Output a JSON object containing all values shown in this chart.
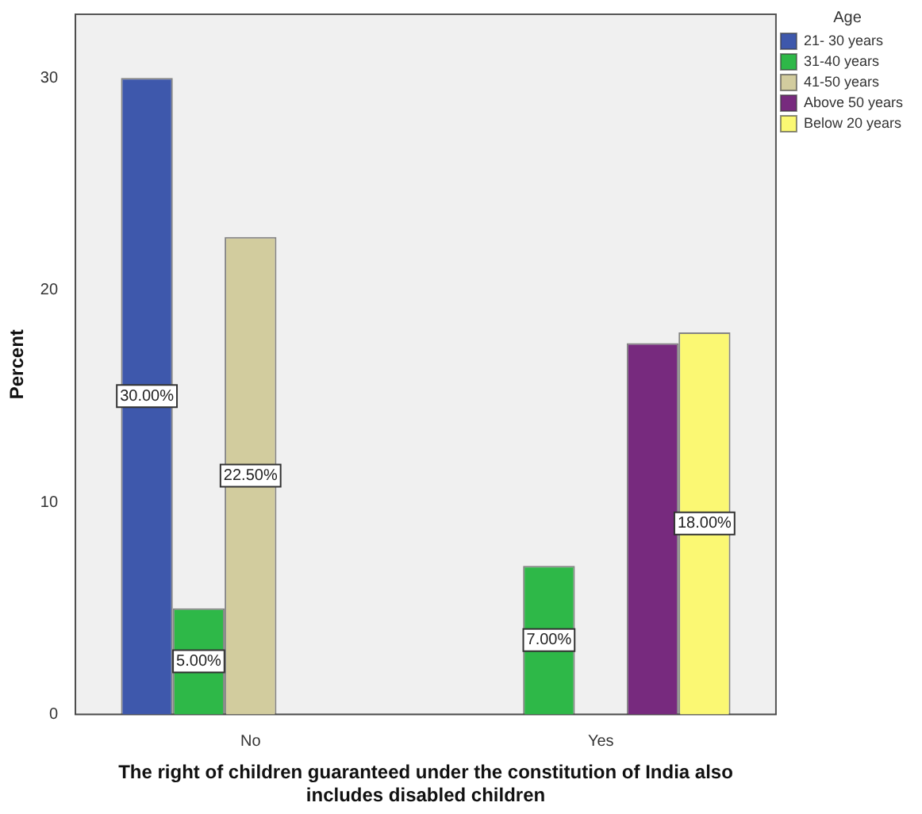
{
  "chart_data": {
    "type": "bar",
    "categories": [
      "No",
      "Yes"
    ],
    "xlabel": "The right of children guaranteed under the constitution of India also includes disabled children",
    "ylabel": "Percent",
    "legend_title": "Age",
    "series": [
      {
        "name": "21- 30 years",
        "color": "#3e58ac",
        "values": [
          30,
          null
        ],
        "value_labels": [
          "30.00%",
          null
        ]
      },
      {
        "name": "31-40 years",
        "color": "#2eb848",
        "values": [
          5,
          7
        ],
        "value_labels": [
          "5.00%",
          "7.00%"
        ]
      },
      {
        "name": "41-50 years",
        "color": "#d2cc9e",
        "values": [
          22.5,
          null
        ],
        "value_labels": [
          "22.50%",
          null
        ]
      },
      {
        "name": "Above 50 years",
        "color": "#772a7e",
        "values": [
          null,
          17.5
        ],
        "value_labels": [
          null,
          null
        ]
      },
      {
        "name": "Below 20 years",
        "color": "#fbf873",
        "values": [
          null,
          18
        ],
        "value_labels": [
          null,
          "18.00%"
        ]
      }
    ],
    "ylim": [
      0,
      33
    ],
    "yticks": [
      0,
      10,
      20,
      30
    ],
    "grid": false,
    "legend": "top right"
  }
}
